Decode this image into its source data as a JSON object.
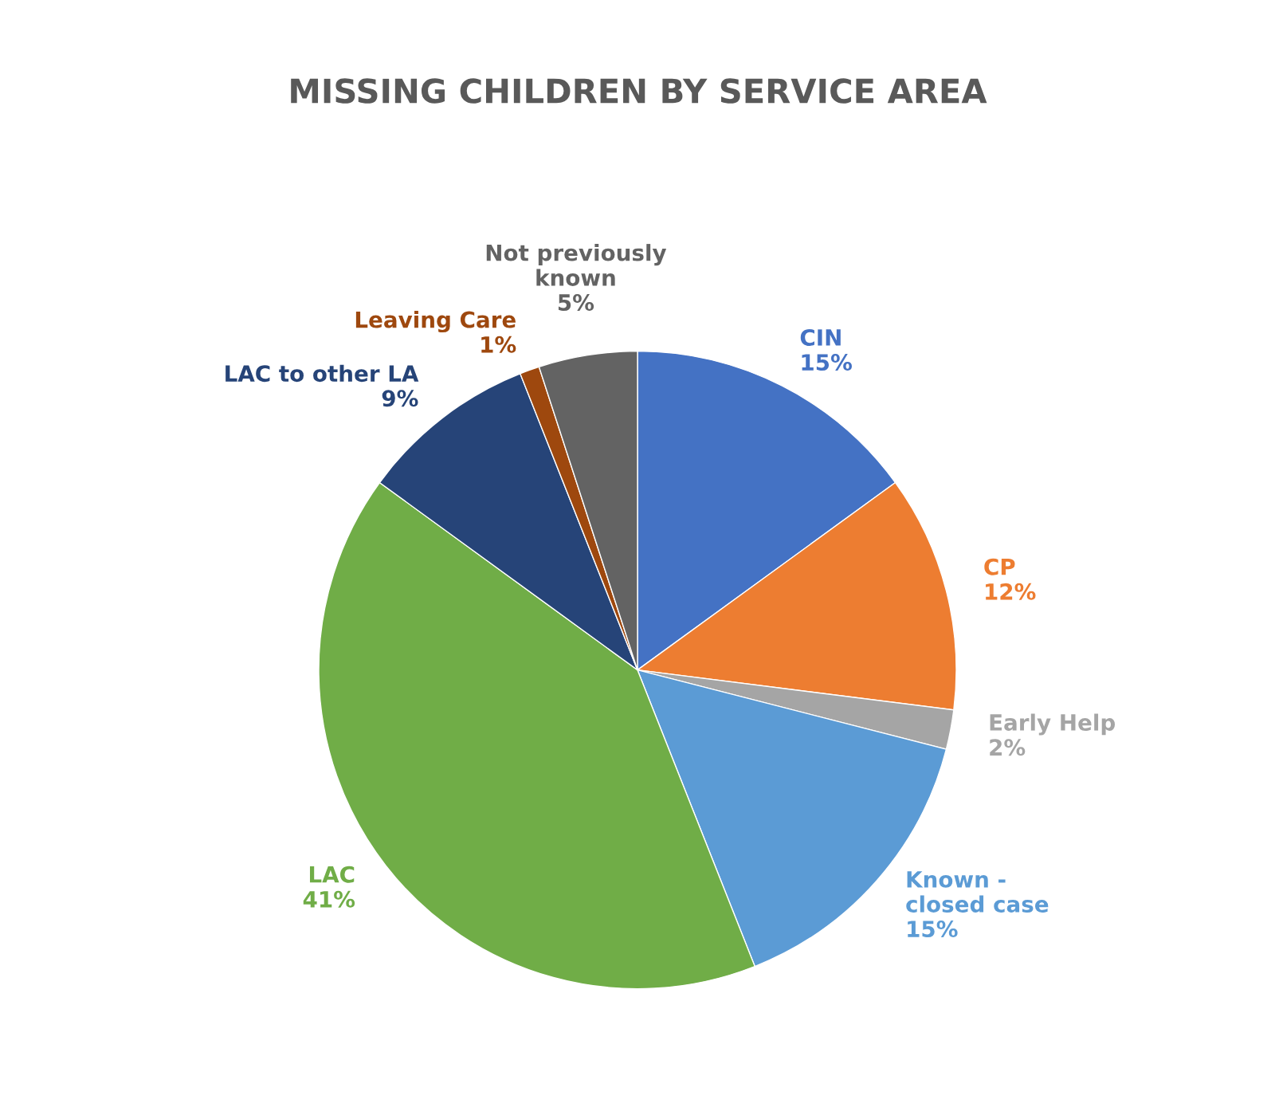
{
  "chart_data": {
    "type": "pie",
    "title": "MISSING CHILDREN BY SERVICE AREA",
    "categories": [
      "CIN",
      "CP",
      "Early Help",
      "Known - closed case",
      "LAC",
      "LAC to other LA",
      "Leaving Care",
      "Not previously known"
    ],
    "values": [
      15,
      12,
      2,
      15,
      41,
      9,
      1,
      5
    ],
    "value_labels": [
      "15%",
      "12%",
      "2%",
      "15%",
      "41%",
      "9%",
      "1%",
      "5%"
    ],
    "colors": [
      "#4472c4",
      "#ed7d31",
      "#a5a5a5",
      "#5b9bd5",
      "#70ad47",
      "#264478",
      "#9e480e",
      "#636363"
    ],
    "legend": false
  }
}
